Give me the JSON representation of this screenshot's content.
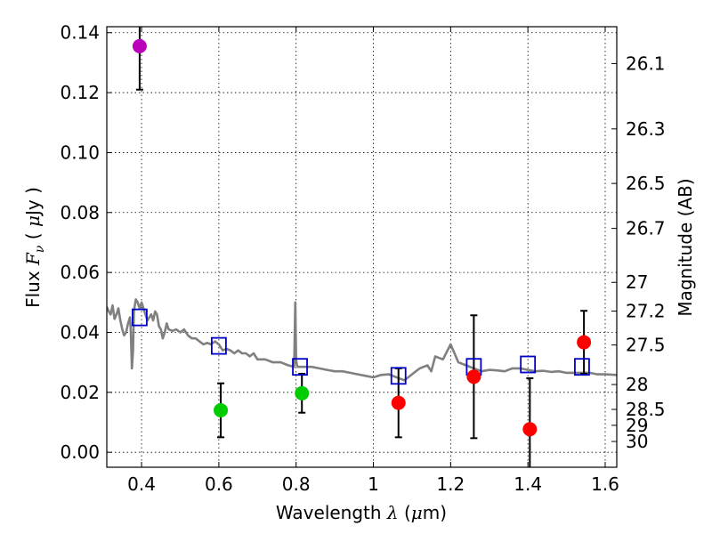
{
  "chart_data": {
    "type": "scatter",
    "title": "",
    "xlabel_prefix": "Wavelength ",
    "xlabel_symbol": "λ",
    "xlabel_unit_open": " (",
    "xlabel_unit_mu": "μ",
    "xlabel_unit_rest": "m)",
    "ylabel_prefix": "Flux ",
    "ylabel_symbol": "F",
    "ylabel_sub": "ν",
    "ylabel_unit_open": " ( ",
    "ylabel_unit_mu": "μ",
    "ylabel_unit_rest": "Jy )",
    "y2label": "Magnitude (AB)",
    "xlim": [
      0.31,
      1.63
    ],
    "ylim": [
      -0.005,
      0.142
    ],
    "grid": true,
    "xticks": [
      0.4,
      0.6,
      0.8,
      1.0,
      1.2,
      1.4,
      1.6
    ],
    "xtick_labels": [
      "0.4",
      "0.6",
      "0.8",
      "1",
      "1.2",
      "1.4",
      "1.6"
    ],
    "yticks": [
      0.0,
      0.02,
      0.04,
      0.06,
      0.08,
      0.1,
      0.12,
      0.14
    ],
    "ytick_labels": [
      "0.00",
      "0.02",
      "0.04",
      "0.06",
      "0.08",
      "0.10",
      "0.12",
      "0.14"
    ],
    "y2ticks": [
      {
        "label": "26.1",
        "flux": 0.1297
      },
      {
        "label": "26.3",
        "flux": 0.1079
      },
      {
        "label": "26.5",
        "flux": 0.0897
      },
      {
        "label": "26.7",
        "flux": 0.0747
      },
      {
        "label": "27",
        "flux": 0.0567
      },
      {
        "label": "27.2",
        "flux": 0.0471
      },
      {
        "label": "27.5",
        "flux": 0.0358
      },
      {
        "label": "28",
        "flux": 0.0226
      },
      {
        "label": "28.5",
        "flux": 0.0143
      },
      {
        "label": "29",
        "flux": 0.009
      },
      {
        "label": "30",
        "flux": 0.0036
      }
    ],
    "series": [
      {
        "name": "model spectrum",
        "kind": "line",
        "color": "#808080",
        "x": [
          0.31,
          0.315,
          0.32,
          0.325,
          0.33,
          0.335,
          0.34,
          0.345,
          0.35,
          0.355,
          0.36,
          0.365,
          0.37,
          0.372,
          0.375,
          0.378,
          0.38,
          0.385,
          0.39,
          0.395,
          0.4,
          0.405,
          0.41,
          0.415,
          0.42,
          0.425,
          0.43,
          0.435,
          0.44,
          0.445,
          0.45,
          0.455,
          0.46,
          0.465,
          0.47,
          0.48,
          0.49,
          0.5,
          0.51,
          0.52,
          0.53,
          0.54,
          0.55,
          0.56,
          0.57,
          0.58,
          0.59,
          0.6,
          0.61,
          0.62,
          0.63,
          0.64,
          0.65,
          0.66,
          0.67,
          0.68,
          0.69,
          0.7,
          0.72,
          0.74,
          0.76,
          0.78,
          0.795,
          0.798,
          0.8,
          0.802,
          0.805,
          0.82,
          0.84,
          0.86,
          0.88,
          0.9,
          0.92,
          0.94,
          0.96,
          0.98,
          1.0,
          1.02,
          1.04,
          1.06,
          1.08,
          1.09,
          1.1,
          1.12,
          1.14,
          1.15,
          1.16,
          1.18,
          1.2,
          1.22,
          1.24,
          1.26,
          1.28,
          1.3,
          1.32,
          1.34,
          1.36,
          1.38,
          1.4,
          1.42,
          1.44,
          1.46,
          1.48,
          1.5,
          1.52,
          1.54,
          1.56,
          1.58,
          1.6,
          1.63
        ],
        "y": [
          0.0485,
          0.047,
          0.046,
          0.049,
          0.0445,
          0.046,
          0.048,
          0.044,
          0.041,
          0.039,
          0.04,
          0.043,
          0.045,
          0.041,
          0.028,
          0.034,
          0.047,
          0.051,
          0.05,
          0.048,
          0.05,
          0.048,
          0.046,
          0.044,
          0.045,
          0.046,
          0.044,
          0.047,
          0.046,
          0.042,
          0.041,
          0.038,
          0.04,
          0.043,
          0.041,
          0.0405,
          0.041,
          0.04,
          0.041,
          0.039,
          0.038,
          0.038,
          0.037,
          0.036,
          0.0365,
          0.036,
          0.037,
          0.036,
          0.034,
          0.0345,
          0.034,
          0.033,
          0.034,
          0.033,
          0.033,
          0.032,
          0.033,
          0.031,
          0.031,
          0.03,
          0.03,
          0.029,
          0.0285,
          0.05,
          0.031,
          0.029,
          0.0285,
          0.0285,
          0.0285,
          0.028,
          0.0275,
          0.027,
          0.027,
          0.0265,
          0.026,
          0.0255,
          0.025,
          0.0258,
          0.026,
          0.025,
          0.024,
          0.025,
          0.026,
          0.028,
          0.029,
          0.027,
          0.032,
          0.031,
          0.036,
          0.03,
          0.029,
          0.028,
          0.027,
          0.0275,
          0.0273,
          0.027,
          0.028,
          0.028,
          0.0275,
          0.027,
          0.0272,
          0.0268,
          0.027,
          0.0265,
          0.0265,
          0.0265,
          0.0265,
          0.026,
          0.026,
          0.0258
        ]
      },
      {
        "name": "model photometry",
        "kind": "open-square",
        "color": "#0000cc",
        "x": [
          0.395,
          0.6,
          0.81,
          1.065,
          1.26,
          1.4,
          1.54
        ],
        "y": [
          0.045,
          0.0355,
          0.0285,
          0.0255,
          0.0285,
          0.0293,
          0.0285
        ]
      },
      {
        "name": "UV detection",
        "kind": "filled-circle",
        "color": "#bb00bb",
        "x": [
          0.395
        ],
        "y": [
          0.1355
        ],
        "err_low": [
          0.0145
        ],
        "err_high": [
          0.007
        ]
      },
      {
        "name": "optical detections",
        "kind": "filled-circle",
        "color": "#00cc00",
        "x": [
          0.605,
          0.815
        ],
        "y": [
          0.014,
          0.0197
        ],
        "err_low": [
          0.009,
          0.0065
        ],
        "err_high": [
          0.009,
          0.0065
        ]
      },
      {
        "name": "near-IR detections",
        "kind": "filled-circle",
        "color": "#ff0000",
        "x": [
          1.065,
          1.26,
          1.405,
          1.545
        ],
        "y": [
          0.0165,
          0.0252,
          0.0077,
          0.0367
        ],
        "err_low": [
          0.0115,
          0.0205,
          0.017,
          0.0105
        ],
        "err_high": [
          0.0115,
          0.0205,
          0.017,
          0.0105
        ]
      }
    ]
  }
}
